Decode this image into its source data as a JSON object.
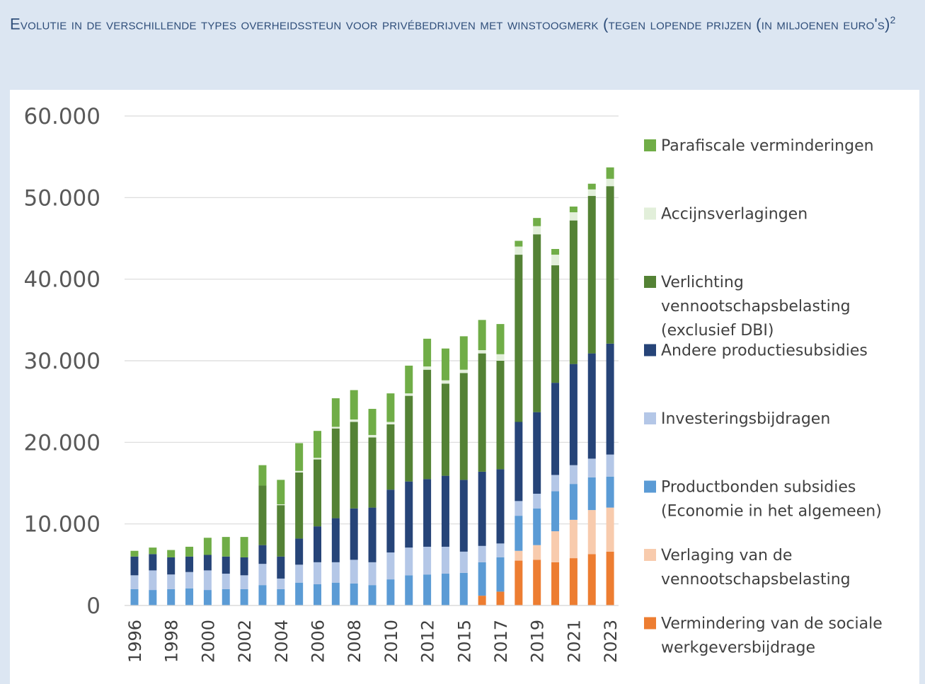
{
  "header": {
    "title": "Evolutie in de verschillende types overheidssteun voor privébedrijven met winstoogmerk (tegen lopende prijzen (in miljoenen euro's)",
    "footnote": "2"
  },
  "chart_data": {
    "type": "bar",
    "stacked": true,
    "ylim": [
      0,
      60000
    ],
    "yticks": [
      0,
      10000,
      20000,
      30000,
      40000,
      50000,
      60000
    ],
    "ytick_labels": [
      "0",
      "10.000",
      "20.000",
      "30.000",
      "40.000",
      "50.000",
      "60.000"
    ],
    "categories": [
      "1996",
      "1997",
      "1998",
      "1999",
      "2000",
      "2001",
      "2002",
      "2003",
      "2004",
      "2005",
      "2006",
      "2007",
      "2008",
      "2009",
      "2010",
      "2011",
      "2012",
      "2014",
      "2015",
      "2016",
      "2017",
      "2018",
      "2019",
      "2020",
      "2021",
      "2022",
      "2023"
    ],
    "xtick_labels": [
      "1996",
      "",
      "1998",
      "",
      "2000",
      "",
      "2002",
      "",
      "2004",
      "",
      "2006",
      "",
      "2008",
      "",
      "2010",
      "",
      "2012",
      "",
      "2015",
      "",
      "2017",
      "",
      "2019",
      "",
      "2021",
      "",
      "2023"
    ],
    "grid": true,
    "legend_position": "right",
    "series": [
      {
        "name": "Vermindering van de sociale werkgeversbijdrage",
        "color": "#ed7d31",
        "values": [
          0,
          0,
          0,
          0,
          0,
          0,
          0,
          0,
          0,
          0,
          0,
          0,
          0,
          0,
          0,
          0,
          0,
          0,
          0,
          1200,
          1700,
          5500,
          5600,
          5300,
          5800,
          6300,
          6600
        ]
      },
      {
        "name": "Verlaging van de vennootschapsbelasting",
        "color": "#f8cbad",
        "values": [
          0,
          0,
          0,
          0,
          0,
          0,
          0,
          0,
          0,
          0,
          0,
          0,
          0,
          0,
          0,
          0,
          0,
          0,
          0,
          0,
          0,
          1200,
          1800,
          3800,
          4700,
          5400,
          5400
        ]
      },
      {
        "name": "Productbonden subsidies (Economie in het algemeen)",
        "color": "#5b9bd5",
        "values": [
          2000,
          1900,
          2000,
          2100,
          1900,
          2000,
          2000,
          2500,
          2000,
          2800,
          2600,
          2800,
          2700,
          2500,
          3200,
          3700,
          3800,
          3900,
          4000,
          4100,
          4200,
          4300,
          4500,
          4900,
          4400,
          4000,
          3800
        ]
      },
      {
        "name": "Investeringsbijdragen",
        "color": "#b4c7e7",
        "values": [
          1700,
          2400,
          1800,
          2000,
          2400,
          1900,
          1700,
          2600,
          1300,
          2200,
          2700,
          2500,
          2900,
          2800,
          3300,
          3400,
          3400,
          3300,
          2600,
          2000,
          1700,
          1800,
          1800,
          2000,
          2300,
          2300,
          2700
        ]
      },
      {
        "name": "Andere productiesubsidies",
        "color": "#264478",
        "values": [
          2300,
          2000,
          2100,
          1900,
          1900,
          2100,
          2200,
          2300,
          2700,
          3200,
          4400,
          5400,
          6300,
          6700,
          7700,
          8100,
          8300,
          8700,
          8800,
          9100,
          9100,
          9700,
          10000,
          11300,
          12400,
          12900,
          13600
        ]
      },
      {
        "name": "Verlichting vennootschapsbelasting (exclusief DBI)",
        "color": "#548235",
        "values": [
          0,
          0,
          0,
          0,
          0,
          0,
          0,
          7300,
          6300,
          8100,
          8200,
          11000,
          10600,
          8600,
          8000,
          10500,
          13400,
          11300,
          13100,
          14500,
          13300,
          20500,
          21800,
          14400,
          17600,
          19300,
          19300
        ]
      },
      {
        "name": "Accijnsverlagingen",
        "color": "#e2efda",
        "values": [
          0,
          0,
          0,
          0,
          0,
          0,
          0,
          0,
          100,
          200,
          200,
          200,
          300,
          300,
          300,
          300,
          400,
          400,
          400,
          400,
          800,
          1000,
          1000,
          1300,
          1000,
          800,
          900
        ]
      },
      {
        "name": "Parafiscale verminderingen",
        "color": "#70ad47",
        "values": [
          700,
          800,
          900,
          1200,
          2100,
          2400,
          2500,
          2500,
          3000,
          3400,
          3300,
          3500,
          3600,
          3200,
          3500,
          3400,
          3400,
          3900,
          4100,
          3700,
          3700,
          700,
          1000,
          700,
          700,
          700,
          1400
        ]
      }
    ]
  },
  "legend": {
    "items": [
      {
        "lines": [
          "Parafiscale verminderingen"
        ],
        "color": "#70ad47"
      },
      {
        "lines": [
          "Accijnsverlagingen"
        ],
        "color": "#e2efda"
      },
      {
        "lines": [
          "Verlichting",
          "vennootschapsbelasting",
          "(exclusief DBI)"
        ],
        "color": "#548235"
      },
      {
        "lines": [
          "Andere productiesubsidies"
        ],
        "color": "#264478"
      },
      {
        "lines": [
          "Investeringsbijdragen"
        ],
        "color": "#b4c7e7"
      },
      {
        "lines": [
          "Productbonden subsidies",
          "(Economie in het algemeen)"
        ],
        "color": "#5b9bd5"
      },
      {
        "lines": [
          "Verlaging van de",
          "vennootschapsbelasting"
        ],
        "color": "#f8cbad"
      },
      {
        "lines": [
          "Vermindering van de sociale",
          "werkgeversbijdrage"
        ],
        "color": "#ed7d31"
      }
    ]
  }
}
